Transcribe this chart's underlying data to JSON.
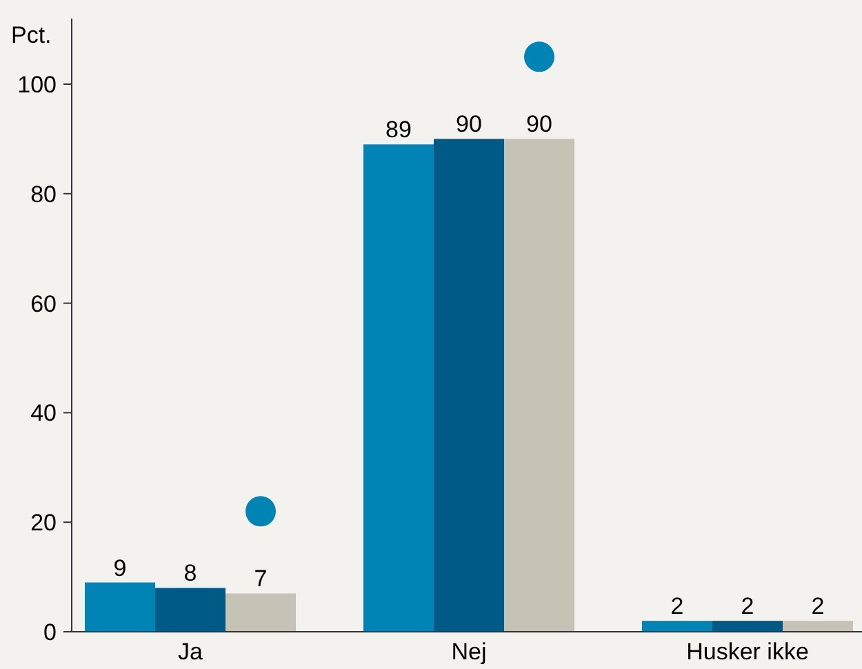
{
  "chart_data": {
    "type": "bar",
    "ylabel": "Pct.",
    "categories": [
      "Ja",
      "Nej",
      "Husker ikke"
    ],
    "series": [
      {
        "color": "#0083b5",
        "values": [
          9,
          89,
          2
        ],
        "value_labels": [
          "9",
          "89",
          "2"
        ]
      },
      {
        "color": "#005a86",
        "values": [
          8,
          90,
          2
        ],
        "value_labels": [
          "8",
          "90",
          "2"
        ]
      },
      {
        "color": "#c6c2b5",
        "values": [
          7,
          90,
          2
        ],
        "value_labels": [
          "7",
          "90",
          "2"
        ]
      },
      {
        "type": "scatter",
        "color": "#0083b5",
        "values": [
          22,
          105,
          null
        ]
      }
    ],
    "ylim": [
      0,
      112
    ],
    "yticks": [
      0,
      20,
      40,
      60,
      80,
      100
    ],
    "grid": false,
    "marker": "circle"
  }
}
